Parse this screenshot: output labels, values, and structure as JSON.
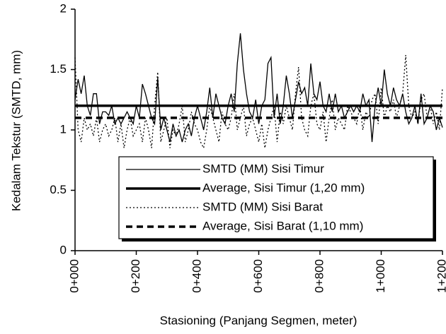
{
  "chart_data": {
    "type": "line",
    "xlabel": "Stasioning (Panjang Segmen, meter)",
    "ylabel": "Kedalam Tekstur (SMTD, mm)",
    "xlim": [
      0,
      1200
    ],
    "ylim": [
      0,
      2
    ],
    "xticks": [
      {
        "value": 0,
        "label": "0+000"
      },
      {
        "value": 200,
        "label": "0+200"
      },
      {
        "value": 400,
        "label": "0+400"
      },
      {
        "value": 600,
        "label": "0+600"
      },
      {
        "value": 800,
        "label": "0+800"
      },
      {
        "value": 1000,
        "label": "1+000"
      },
      {
        "value": 1200,
        "label": "1+200"
      }
    ],
    "yticks": [
      0,
      0.5,
      1,
      1.5,
      2
    ],
    "grid": false,
    "legend": "lower right",
    "series": [
      {
        "name": "SMTD (MM) Sisi Timur",
        "color": "#000000",
        "line_style": "solid",
        "line_width": 1.3,
        "x": [
          0,
          10,
          20,
          30,
          40,
          50,
          60,
          70,
          80,
          90,
          100,
          110,
          120,
          130,
          140,
          150,
          160,
          170,
          180,
          190,
          200,
          210,
          220,
          230,
          240,
          250,
          260,
          270,
          280,
          290,
          300,
          310,
          320,
          330,
          340,
          350,
          360,
          370,
          380,
          390,
          400,
          410,
          420,
          430,
          440,
          450,
          460,
          470,
          480,
          490,
          500,
          510,
          520,
          530,
          540,
          550,
          560,
          570,
          580,
          590,
          600,
          610,
          620,
          630,
          640,
          650,
          660,
          670,
          680,
          690,
          700,
          710,
          720,
          730,
          740,
          750,
          760,
          770,
          780,
          790,
          800,
          810,
          820,
          830,
          840,
          850,
          860,
          870,
          880,
          890,
          900,
          910,
          920,
          930,
          940,
          950,
          960,
          970,
          980,
          990,
          1000,
          1010,
          1020,
          1030,
          1040,
          1050,
          1060,
          1070,
          1080,
          1090,
          1100,
          1110,
          1120,
          1130,
          1140,
          1150,
          1160,
          1170,
          1180,
          1190,
          1200
        ],
        "values": [
          1.25,
          1.42,
          1.3,
          1.45,
          1.2,
          1.12,
          1.3,
          1.3,
          1.05,
          1.15,
          1.15,
          1.12,
          1.2,
          1.05,
          1.1,
          1.05,
          1.1,
          1.15,
          1.1,
          1.05,
          1.2,
          1.1,
          1.38,
          1.3,
          1.2,
          1.1,
          1.05,
          1.43,
          1.0,
          1.1,
          1.0,
          0.9,
          1.05,
          0.95,
          1.0,
          0.9,
          1.0,
          1.05,
          0.95,
          1.1,
          1.2,
          1.1,
          1.0,
          1.15,
          1.35,
          1.1,
          1.3,
          1.2,
          1.1,
          1.05,
          1.2,
          1.3,
          1.15,
          1.55,
          1.8,
          1.5,
          1.3,
          1.15,
          1.1,
          1.25,
          1.05,
          1.2,
          1.25,
          1.55,
          1.6,
          1.1,
          1.3,
          1.05,
          1.2,
          1.45,
          1.3,
          1.1,
          1.25,
          1.4,
          1.3,
          1.35,
          1.2,
          1.55,
          1.3,
          1.25,
          1.4,
          1.2,
          1.15,
          1.3,
          1.15,
          1.3,
          1.15,
          1.2,
          1.1,
          1.15,
          1.2,
          1.15,
          1.2,
          1.15,
          1.3,
          1.2,
          1.25,
          0.9,
          1.2,
          1.35,
          1.2,
          1.5,
          1.3,
          1.2,
          1.35,
          1.25,
          1.2,
          1.3,
          1.15,
          1.05,
          1.1,
          1.2,
          1.05,
          1.3,
          1.05,
          1.1,
          1.2,
          1.15,
          1.0,
          1.1,
          1.02
        ]
      },
      {
        "name": "Average, Sisi Timur (1,20 mm)",
        "color": "#000000",
        "line_style": "solid",
        "line_width": 3.5,
        "x": [
          0,
          1200
        ],
        "values": [
          1.2,
          1.2
        ]
      },
      {
        "name": "SMTD (MM) Sisi Barat",
        "color": "#000000",
        "line_style": "dotted",
        "line_width": 1.3,
        "x": [
          0,
          10,
          20,
          30,
          40,
          50,
          60,
          70,
          80,
          90,
          100,
          110,
          120,
          130,
          140,
          150,
          160,
          170,
          180,
          190,
          200,
          210,
          220,
          230,
          240,
          250,
          260,
          270,
          280,
          290,
          300,
          310,
          320,
          330,
          340,
          350,
          360,
          370,
          380,
          390,
          400,
          410,
          420,
          430,
          440,
          450,
          460,
          470,
          480,
          490,
          500,
          510,
          520,
          530,
          540,
          550,
          560,
          570,
          580,
          590,
          600,
          610,
          620,
          630,
          640,
          650,
          660,
          670,
          680,
          690,
          700,
          710,
          720,
          730,
          740,
          750,
          760,
          770,
          780,
          790,
          800,
          810,
          820,
          830,
          840,
          850,
          860,
          870,
          880,
          890,
          900,
          910,
          920,
          930,
          940,
          950,
          960,
          970,
          980,
          990,
          1000,
          1010,
          1020,
          1030,
          1040,
          1050,
          1060,
          1070,
          1080,
          1090,
          1100,
          1110,
          1120,
          1130,
          1140,
          1150,
          1160,
          1170,
          1180,
          1190,
          1200
        ],
        "values": [
          1.6,
          1.0,
          0.9,
          1.1,
          1.0,
          1.05,
          0.95,
          1.1,
          0.9,
          1.0,
          1.05,
          0.95,
          1.0,
          1.1,
          0.9,
          1.05,
          0.85,
          1.0,
          1.1,
          0.95,
          1.0,
          1.05,
          0.9,
          1.1,
          1.0,
          0.85,
          1.2,
          1.48,
          0.9,
          1.0,
          1.1,
          0.85,
          1.0,
          0.95,
          1.05,
          1.2,
          0.9,
          1.0,
          1.15,
          1.05,
          1.0,
          0.9,
          0.85,
          1.0,
          1.2,
          1.1,
          1.0,
          0.9,
          1.15,
          1.05,
          1.0,
          1.1,
          1.3,
          1.0,
          1.1,
          1.2,
          0.95,
          1.05,
          1.1,
          1.0,
          0.9,
          1.05,
          0.85,
          1.0,
          1.1,
          1.2,
          0.9,
          1.15,
          1.05,
          1.2,
          1.1,
          1.0,
          1.3,
          1.52,
          1.1,
          1.0,
          0.95,
          1.2,
          1.3,
          1.05,
          1.0,
          1.15,
          0.9,
          1.1,
          1.25,
          1.0,
          1.1,
          1.05,
          1.0,
          1.2,
          1.15,
          1.1,
          1.05,
          1.2,
          1.0,
          1.15,
          1.1,
          1.25,
          1.3,
          1.05,
          1.35,
          1.1,
          1.2,
          1.15,
          1.25,
          1.1,
          1.2,
          1.3,
          1.62,
          1.2,
          1.1,
          1.15,
          1.05,
          1.25,
          1.3,
          1.1,
          1.2,
          1.05,
          1.15,
          1.0,
          1.35
        ]
      },
      {
        "name": "Average, Sisi Barat (1,10 mm)",
        "color": "#000000",
        "line_style": "dashed",
        "line_width": 3.5,
        "x": [
          0,
          1200
        ],
        "values": [
          1.1,
          1.1
        ]
      }
    ]
  }
}
